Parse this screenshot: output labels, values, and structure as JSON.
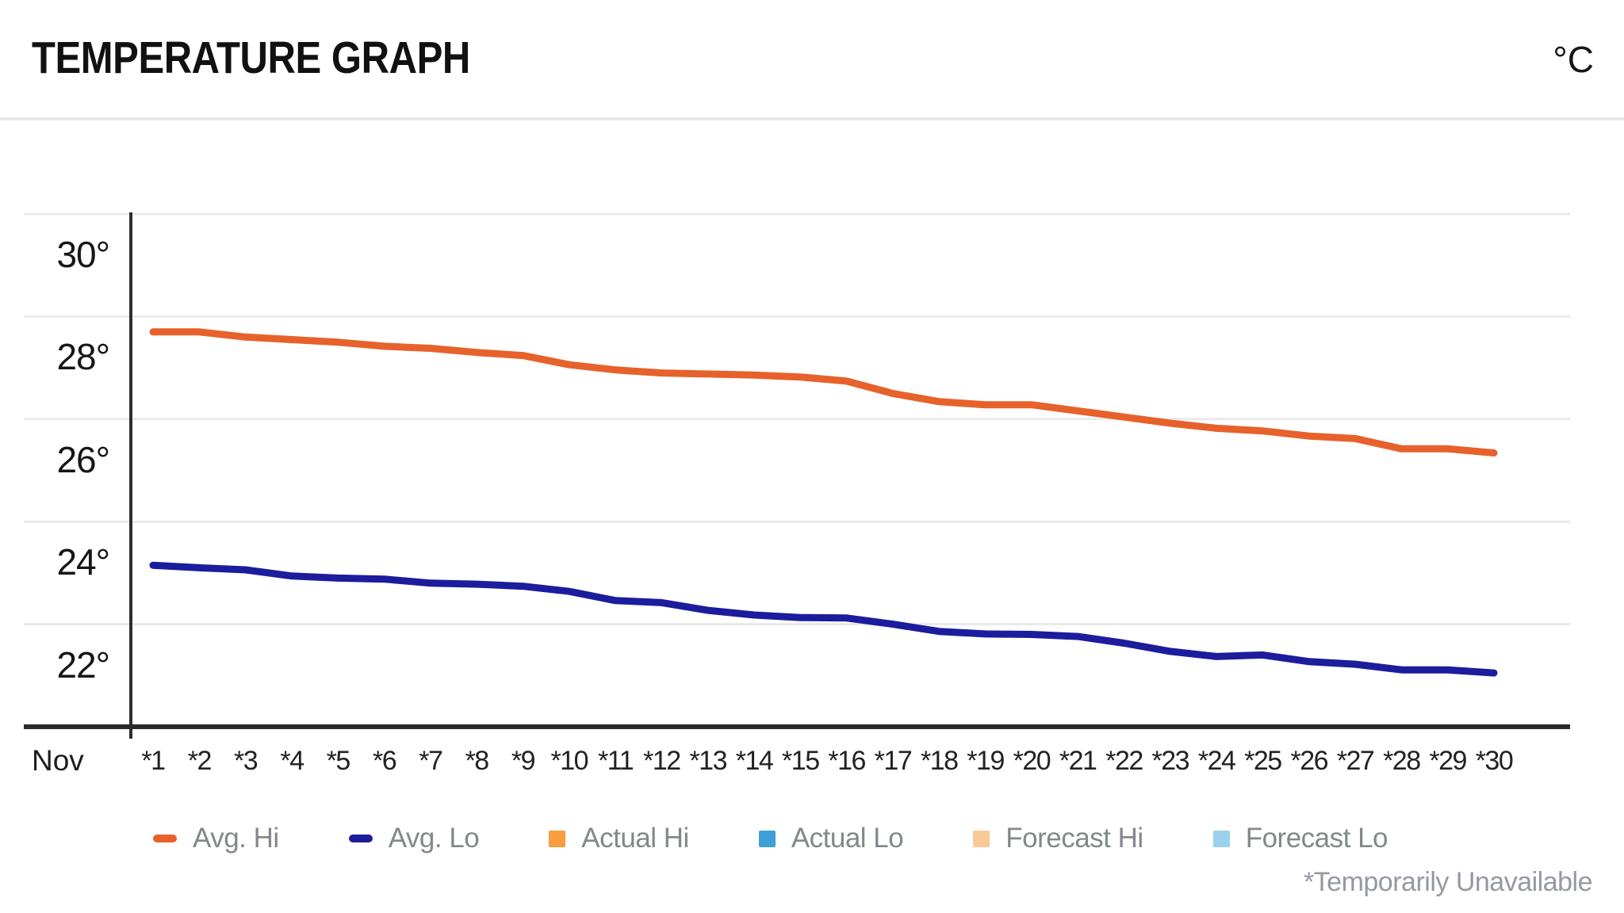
{
  "header": {
    "title": "TEMPERATURE GRAPH",
    "unit": "°C"
  },
  "chart_data": {
    "type": "line",
    "title": "TEMPERATURE GRAPH",
    "unit": "°C",
    "month_label": "Nov",
    "x_tick_labels": [
      "*1",
      "*2",
      "*3",
      "*4",
      "*5",
      "*6",
      "*7",
      "*8",
      "*9",
      "*10",
      "*11",
      "*12",
      "*13",
      "*14",
      "*15",
      "*16",
      "*17",
      "*18",
      "*19",
      "*20",
      "*21",
      "*22",
      "*23",
      "*24",
      "*25",
      "*26",
      "*27",
      "*28",
      "*29",
      "*30"
    ],
    "y_tick_labels": [
      "30°",
      "28°",
      "26°",
      "24°",
      "22°"
    ],
    "y_ticks": [
      30,
      28,
      26,
      24,
      22
    ],
    "ylim": [
      20,
      30
    ],
    "grid": "horizontal",
    "legend_position": "bottom",
    "footnote": "*Temporarily Unavailable",
    "series": [
      {
        "name": "Avg. Hi",
        "swatch": "dash",
        "color": "#e7612b",
        "values": [
          27.7,
          27.7,
          27.6,
          27.55,
          27.5,
          27.42,
          27.38,
          27.3,
          27.24,
          27.06,
          26.96,
          26.9,
          26.88,
          26.86,
          26.82,
          26.74,
          26.5,
          26.34,
          26.28,
          26.28,
          26.16,
          26.04,
          25.92,
          25.82,
          25.77,
          25.67,
          25.62,
          25.42,
          25.42,
          25.34
        ]
      },
      {
        "name": "Avg. Lo",
        "swatch": "dash",
        "color": "#1c1c9d",
        "values": [
          23.15,
          23.1,
          23.06,
          22.94,
          22.9,
          22.88,
          22.8,
          22.78,
          22.74,
          22.64,
          22.46,
          22.42,
          22.27,
          22.18,
          22.13,
          22.12,
          22.0,
          21.86,
          21.81,
          21.8,
          21.76,
          21.63,
          21.47,
          21.37,
          21.4,
          21.27,
          21.22,
          21.11,
          21.11,
          21.05
        ]
      },
      {
        "name": "Actual Hi",
        "swatch": "square",
        "color": "#f99d3e",
        "values": []
      },
      {
        "name": "Actual Lo",
        "swatch": "square",
        "color": "#3d9fd5",
        "values": []
      },
      {
        "name": "Forecast Hi",
        "swatch": "square",
        "color": "#f8ca97",
        "values": []
      },
      {
        "name": "Forecast Lo",
        "swatch": "square",
        "color": "#9bd1ec",
        "values": []
      }
    ]
  },
  "colors": {
    "grid": "#eaeaea",
    "axis": "#2b2b2b",
    "legend_text": "#83888c",
    "footnote_text": "#9698a2"
  }
}
